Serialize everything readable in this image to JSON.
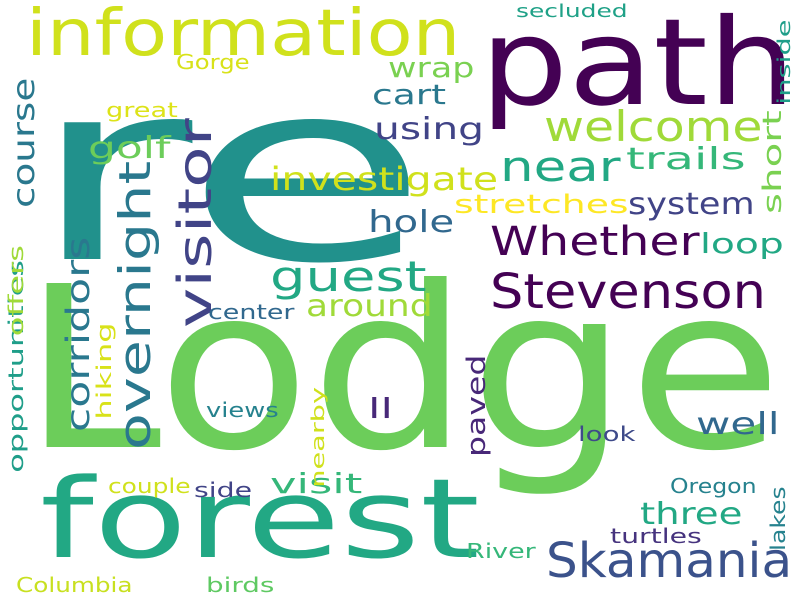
{
  "cloud": {
    "words": [
      {
        "text": "re",
        "color": "#21918c"
      },
      {
        "text": "Lodge",
        "color": "#6ccd5a"
      },
      {
        "text": "path",
        "color": "#440154"
      },
      {
        "text": "forest",
        "color": "#22a884"
      },
      {
        "text": "information",
        "color": "#d0e11c"
      },
      {
        "text": "Stevenson",
        "color": "#440154"
      },
      {
        "text": "Skamania",
        "color": "#3b528b"
      },
      {
        "text": "Whether",
        "color": "#440154"
      },
      {
        "text": "visitor",
        "color": "#414487"
      },
      {
        "text": "overnight",
        "color": "#2a788e"
      },
      {
        "text": "welcome",
        "color": "#a0da39"
      },
      {
        "text": "near",
        "color": "#22a884"
      },
      {
        "text": "guest",
        "color": "#22a884"
      },
      {
        "text": "corridors",
        "color": "#2a788e"
      },
      {
        "text": "investigate",
        "color": "#d0e11c"
      },
      {
        "text": "system",
        "color": "#414487"
      },
      {
        "text": "trails",
        "color": "#35b779"
      },
      {
        "text": "course",
        "color": "#2a788e"
      },
      {
        "text": "golf",
        "color": "#6ccd5a"
      },
      {
        "text": "using",
        "color": "#414487"
      },
      {
        "text": "cart",
        "color": "#2a788e"
      },
      {
        "text": "wrap",
        "color": "#7ad151"
      },
      {
        "text": "hole",
        "color": "#31688e"
      },
      {
        "text": "loop",
        "color": "#22a884"
      },
      {
        "text": "short",
        "color": "#7ad151"
      },
      {
        "text": "stretches",
        "color": "#fde725"
      },
      {
        "text": "around",
        "color": "#a0da39"
      },
      {
        "text": "paved",
        "color": "#482878"
      },
      {
        "text": "well",
        "color": "#31688e"
      },
      {
        "text": "three",
        "color": "#22a884"
      },
      {
        "text": "visit",
        "color": "#35b779"
      },
      {
        "text": "ll",
        "color": "#482878"
      },
      {
        "text": "views",
        "color": "#26828e"
      },
      {
        "text": "center",
        "color": "#31688e"
      },
      {
        "text": "hiking",
        "color": "#d8e219"
      },
      {
        "text": "opportunities",
        "color": "#1f9e89"
      },
      {
        "text": "offers",
        "color": "#a0da39"
      },
      {
        "text": "nearby",
        "color": "#d0e11c"
      },
      {
        "text": "look",
        "color": "#3e4a89"
      },
      {
        "text": "couple",
        "color": "#d0e11c"
      },
      {
        "text": "side",
        "color": "#414487"
      },
      {
        "text": "Oregon",
        "color": "#26828e"
      },
      {
        "text": "turtles",
        "color": "#46337e"
      },
      {
        "text": "lakes",
        "color": "#26828e"
      },
      {
        "text": "River",
        "color": "#35b779"
      },
      {
        "text": "Columbia",
        "color": "#c8e020"
      },
      {
        "text": "birds",
        "color": "#5ec962"
      },
      {
        "text": "secluded",
        "color": "#1fa187"
      },
      {
        "text": "Gorge",
        "color": "#d8e219"
      },
      {
        "text": "great",
        "color": "#dde318"
      },
      {
        "text": "inside",
        "color": "#1f9e89"
      }
    ]
  }
}
